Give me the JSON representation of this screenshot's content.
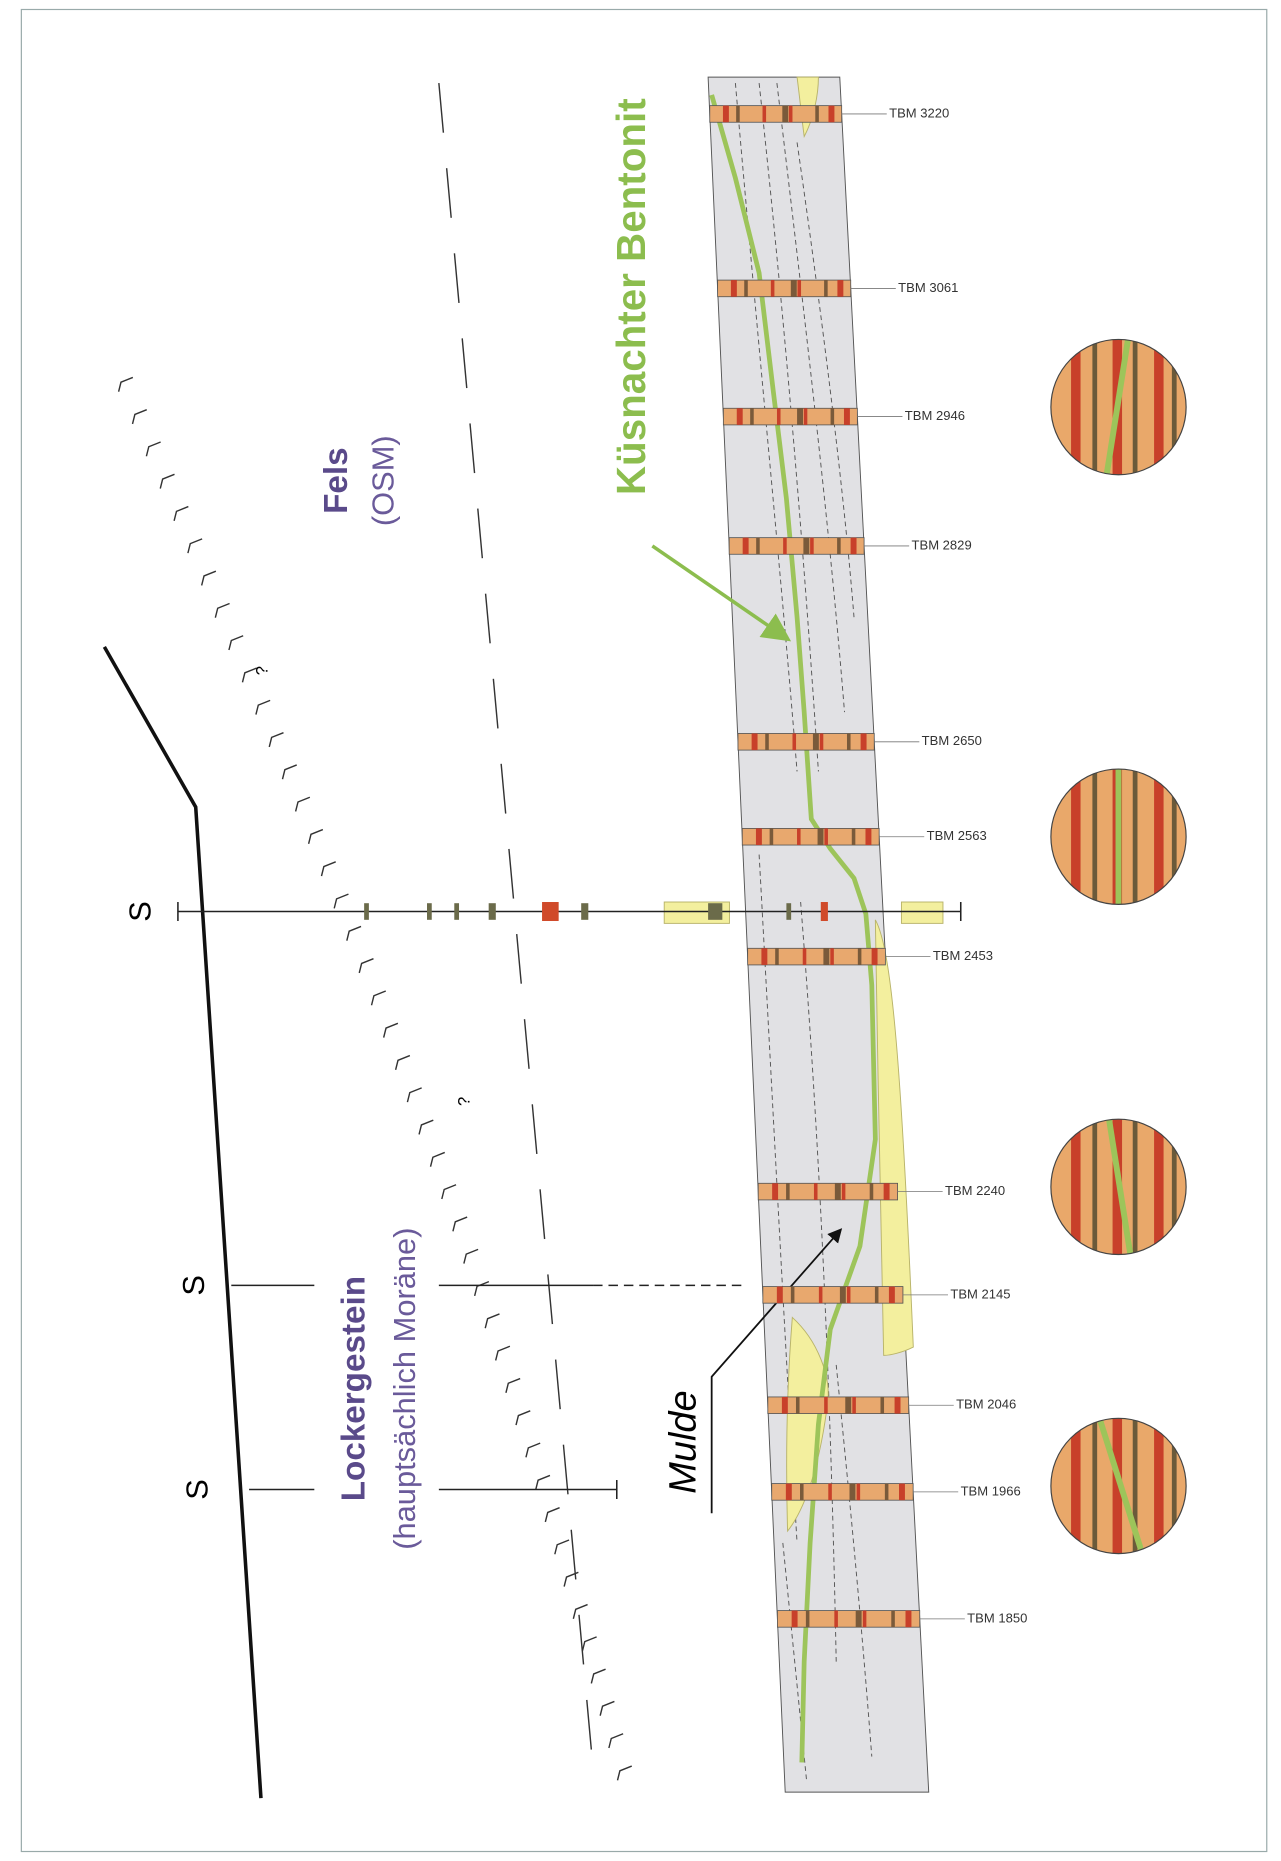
{
  "labels": {
    "bentonit": "Küsnachter Bentonit",
    "fels": "Fels",
    "fels_sub": "(OSM)",
    "locker": "Lockergestein",
    "locker_sub": "(hauptsächlich Moräne)",
    "mulde": "Mulde",
    "sections": [
      "S",
      "S",
      "S"
    ],
    "queries": [
      "?",
      "?"
    ]
  },
  "rings": [
    "TBM 3220",
    "TBM 3061",
    "TBM 2946",
    "TBM 2829",
    "TBM 2650",
    "TBM 2563",
    "TBM 2453",
    "TBM 2240",
    "TBM 2145",
    "TBM 2046",
    "TBM 1966",
    "TBM 1850"
  ]
}
